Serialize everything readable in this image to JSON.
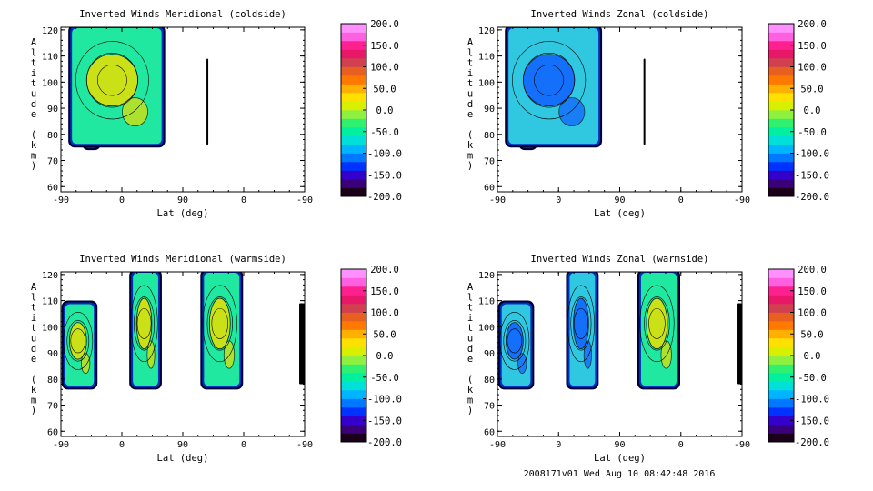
{
  "colorbar": {
    "labels": [
      "200.0",
      "150.0",
      "100.0",
      "50.0",
      "0.0",
      "-50.0",
      "-100.0",
      "-150.0",
      "-200.0"
    ],
    "colors": [
      "#1a0018",
      "#3a007a",
      "#3300cc",
      "#0033ff",
      "#0078ff",
      "#00b4ff",
      "#00e0d8",
      "#00f0a0",
      "#30f070",
      "#90f040",
      "#d8f000",
      "#ffe000",
      "#ffb000",
      "#ff7800",
      "#e86020",
      "#d04050",
      "#e81868",
      "#ff2090",
      "#ff60e0",
      "#ff90ff"
    ]
  },
  "colors": {
    "cold_bg": "#20e8a0",
    "warm_bg": "#30c8e0",
    "hot": "#e8e000",
    "cool": "#1060ff",
    "edge": "#000080"
  },
  "footer": "2008171v01 Wed Aug 10 08:42:48 2016",
  "chart_data": [
    {
      "type": "heatmap",
      "title": "Inverted Winds Meridional (coldside)",
      "xlabel": "Lat (deg)",
      "ylabel": "Altitude (km)",
      "xticks": [
        "-90",
        "0",
        "90",
        "0",
        "-90"
      ],
      "yticks": [
        "60",
        "70",
        "80",
        "90",
        "100",
        "110",
        "120"
      ],
      "ylim": [
        58,
        121
      ],
      "colorbar_range": [
        -200,
        200
      ],
      "data_regions": [
        {
          "x": [
            -55,
            -35
          ],
          "alt": [
            75,
            110
          ],
          "fill": "cold_bg",
          "spot": "hot"
        },
        {
          "x": [
            -75,
            60
          ],
          "alt": [
            76,
            121
          ],
          "fill": "cold_bg",
          "spot": "hot"
        },
        {
          "x": [
            125,
            127
          ],
          "alt": [
            76,
            109
          ],
          "fill": "edge",
          "spot": ""
        }
      ]
    },
    {
      "type": "heatmap",
      "title": "Inverted Winds Zonal (coldside)",
      "xlabel": "Lat (deg)",
      "ylabel": "Altitude (km)",
      "xticks": [
        "-90",
        "0",
        "90",
        "0",
        "-90"
      ],
      "yticks": [
        "60",
        "70",
        "80",
        "90",
        "100",
        "110",
        "120"
      ],
      "ylim": [
        58,
        121
      ],
      "colorbar_range": [
        -200,
        200
      ],
      "data_regions": [
        {
          "x": [
            -55,
            -35
          ],
          "alt": [
            75,
            110
          ],
          "fill": "cold_bg",
          "spot": "hot"
        },
        {
          "x": [
            -75,
            60
          ],
          "alt": [
            76,
            121
          ],
          "fill": "warm_bg",
          "spot": "cool"
        },
        {
          "x": [
            125,
            127
          ],
          "alt": [
            76,
            109
          ],
          "fill": "edge",
          "spot": ""
        }
      ]
    },
    {
      "type": "heatmap",
      "title": "Inverted Winds Meridional (warmside)",
      "xlabel": "Lat (deg)",
      "ylabel": "Altitude (km)",
      "xticks": [
        "-90",
        "0",
        "90",
        "0",
        "-90"
      ],
      "yticks": [
        "60",
        "70",
        "80",
        "90",
        "100",
        "110",
        "120"
      ],
      "ylim": [
        58,
        121
      ],
      "colorbar_range": [
        -200,
        200
      ],
      "data_regions": [
        {
          "x": [
            -85,
            -40
          ],
          "alt": [
            77,
            109
          ],
          "fill": "cold_bg",
          "spot": "hot"
        },
        {
          "x": [
            15,
            55
          ],
          "alt": [
            77,
            121
          ],
          "fill": "cold_bg",
          "spot": "hot"
        },
        {
          "x": [
            120,
            175
          ],
          "alt": [
            77,
            121
          ],
          "fill": "cold_bg",
          "spot": "hot"
        },
        {
          "x": [
            262,
            270
          ],
          "alt": [
            78,
            109
          ],
          "fill": "edge",
          "spot": ""
        }
      ]
    },
    {
      "type": "heatmap",
      "title": "Inverted Winds Zonal (warmside)",
      "xlabel": "Lat (deg)",
      "ylabel": "Altitude (km)",
      "xticks": [
        "-90",
        "0",
        "90",
        "0",
        "-90"
      ],
      "yticks": [
        "60",
        "70",
        "80",
        "90",
        "100",
        "110",
        "120"
      ],
      "ylim": [
        58,
        121
      ],
      "colorbar_range": [
        -200,
        200
      ],
      "data_regions": [
        {
          "x": [
            -85,
            -40
          ],
          "alt": [
            77,
            109
          ],
          "fill": "warm_bg",
          "spot": "cool"
        },
        {
          "x": [
            15,
            55
          ],
          "alt": [
            77,
            121
          ],
          "fill": "warm_bg",
          "spot": "cool"
        },
        {
          "x": [
            120,
            175
          ],
          "alt": [
            77,
            121
          ],
          "fill": "cold_bg",
          "spot": "hot"
        },
        {
          "x": [
            262,
            270
          ],
          "alt": [
            78,
            109
          ],
          "fill": "edge",
          "spot": ""
        }
      ]
    }
  ]
}
